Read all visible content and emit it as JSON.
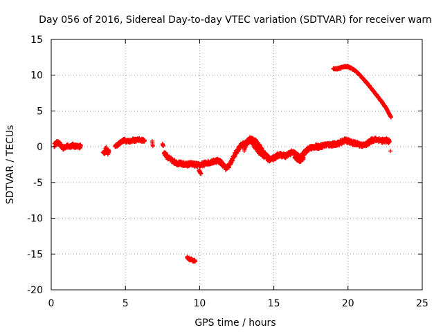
{
  "chart_data": {
    "type": "scatter",
    "title": "Day 056 of 2016, Sidereal Day-to-day VTEC variation (SDTVAR) for receiver warn",
    "xlabel": "GPS time / hours",
    "ylabel": "SDTVAR / TECUs",
    "xlim": [
      0,
      25
    ],
    "ylim": [
      -20,
      15
    ],
    "xticks": [
      0,
      5,
      10,
      15,
      20,
      25
    ],
    "yticks": [
      -20,
      -15,
      -10,
      -5,
      0,
      5,
      10,
      15
    ],
    "grid": true,
    "marker": "+",
    "color": "#ff0000",
    "series": [
      {
        "name": "SDTVAR",
        "segments": [
          {
            "points": [
              [
                0.2,
                0.2
              ],
              [
                0.4,
                0.6
              ],
              [
                0.6,
                0.3
              ],
              [
                0.8,
                -0.2
              ],
              [
                1.0,
                0.1
              ],
              [
                1.2,
                0.0
              ],
              [
                1.4,
                0.2
              ],
              [
                1.6,
                0.1
              ],
              [
                1.8,
                0.0
              ],
              [
                2.0,
                0.1
              ]
            ],
            "spread": 0.55
          },
          {
            "points": [
              [
                3.5,
                -0.5
              ],
              [
                3.6,
                -0.9
              ],
              [
                3.7,
                -0.3
              ],
              [
                3.8,
                -0.8
              ],
              [
                3.9,
                -0.6
              ]
            ],
            "spread": 0.7
          },
          {
            "points": [
              [
                4.3,
                0.0
              ],
              [
                4.5,
                0.3
              ],
              [
                4.7,
                0.7
              ],
              [
                4.9,
                0.9
              ],
              [
                5.1,
                0.8
              ],
              [
                5.3,
                0.8
              ],
              [
                5.5,
                0.9
              ],
              [
                5.7,
                0.9
              ],
              [
                5.9,
                1.0
              ],
              [
                6.1,
                0.9
              ],
              [
                6.3,
                0.9
              ]
            ],
            "spread": 0.45
          },
          {
            "points": [
              [
                6.8,
                0.7
              ],
              [
                6.85,
                0.1
              ]
            ],
            "spread": 0.2
          },
          {
            "points": [
              [
                7.5,
                0.4
              ],
              [
                7.55,
                0.1
              ]
            ],
            "spread": 0.2
          },
          {
            "points": [
              [
                7.6,
                -0.8
              ],
              [
                7.9,
                -1.6
              ],
              [
                8.2,
                -2.0
              ],
              [
                8.5,
                -2.3
              ],
              [
                8.8,
                -2.4
              ],
              [
                9.1,
                -2.5
              ],
              [
                9.4,
                -2.4
              ],
              [
                9.7,
                -2.5
              ],
              [
                10.0,
                -2.6
              ],
              [
                10.3,
                -2.4
              ],
              [
                10.6,
                -2.2
              ],
              [
                10.9,
                -2.1
              ],
              [
                11.2,
                -1.9
              ],
              [
                11.4,
                -2.1
              ],
              [
                11.6,
                -2.6
              ],
              [
                11.8,
                -3.0
              ],
              [
                12.0,
                -2.6
              ],
              [
                12.2,
                -1.8
              ],
              [
                12.4,
                -1.0
              ],
              [
                12.6,
                -0.3
              ],
              [
                12.8,
                0.2
              ],
              [
                13.0,
                0.4
              ],
              [
                13.2,
                0.6
              ],
              [
                13.4,
                0.9
              ],
              [
                13.6,
                0.5
              ],
              [
                13.8,
                -0.2
              ],
              [
                14.0,
                -0.7
              ],
              [
                14.2,
                -1.0
              ],
              [
                14.4,
                -1.4
              ],
              [
                14.6,
                -1.7
              ],
              [
                14.8,
                -1.8
              ],
              [
                15.0,
                -1.6
              ],
              [
                15.2,
                -1.3
              ],
              [
                15.4,
                -1.1
              ],
              [
                15.6,
                -1.2
              ],
              [
                15.8,
                -1.3
              ],
              [
                16.0,
                -1.0
              ],
              [
                16.2,
                -0.8
              ],
              [
                16.4,
                -0.9
              ],
              [
                16.6,
                -1.3
              ],
              [
                16.8,
                -1.5
              ],
              [
                17.0,
                -1.0
              ],
              [
                17.2,
                -0.5
              ],
              [
                17.4,
                -0.2
              ],
              [
                17.6,
                -0.1
              ],
              [
                17.8,
                0.0
              ],
              [
                18.0,
                0.0
              ],
              [
                18.2,
                0.1
              ],
              [
                18.4,
                0.2
              ],
              [
                18.6,
                0.3
              ],
              [
                18.8,
                0.3
              ],
              [
                19.0,
                0.3
              ],
              [
                19.2,
                0.4
              ],
              [
                19.4,
                0.5
              ],
              [
                19.6,
                0.7
              ],
              [
                19.8,
                0.9
              ],
              [
                20.0,
                0.8
              ],
              [
                20.2,
                0.6
              ],
              [
                20.4,
                0.5
              ],
              [
                20.6,
                0.4
              ],
              [
                20.8,
                0.3
              ],
              [
                21.0,
                0.2
              ],
              [
                21.2,
                0.3
              ],
              [
                21.4,
                0.6
              ],
              [
                21.6,
                0.9
              ],
              [
                21.8,
                1.0
              ],
              [
                22.0,
                1.0
              ],
              [
                22.2,
                0.9
              ],
              [
                22.4,
                0.8
              ],
              [
                22.6,
                0.9
              ],
              [
                22.8,
                0.7
              ]
            ],
            "spread": 0.6
          },
          {
            "points": [
              [
                13.0,
                -0.5
              ],
              [
                13.2,
                0.8
              ],
              [
                13.4,
                1.2
              ],
              [
                13.6,
                1.0
              ],
              [
                13.8,
                0.8
              ],
              [
                14.0,
                0.3
              ],
              [
                14.2,
                -0.4
              ],
              [
                14.4,
                -1.0
              ],
              [
                14.6,
                -1.3
              ]
            ],
            "spread": 0.35
          },
          {
            "points": [
              [
                16.4,
                -1.4
              ],
              [
                16.6,
                -1.9
              ],
              [
                16.8,
                -2.0
              ],
              [
                17.0,
                -1.6
              ]
            ],
            "spread": 0.3
          },
          {
            "points": [
              [
                9.15,
                -15.5
              ],
              [
                9.3,
                -15.7
              ],
              [
                9.45,
                -15.8
              ],
              [
                9.6,
                -15.9
              ],
              [
                9.7,
                -16.0
              ]
            ],
            "spread": 0.35
          },
          {
            "points": [
              [
                9.95,
                -3.3
              ],
              [
                10.1,
                -3.8
              ]
            ],
            "spread": 0.2
          },
          {
            "points": [
              [
                22.85,
                -0.6
              ]
            ],
            "spread": 0.15
          },
          {
            "points": [
              [
                19.0,
                10.9
              ],
              [
                19.3,
                10.9
              ],
              [
                19.6,
                11.1
              ],
              [
                19.8,
                11.2
              ],
              [
                20.0,
                11.2
              ],
              [
                20.2,
                11.0
              ],
              [
                20.5,
                10.6
              ],
              [
                20.8,
                10.0
              ],
              [
                21.1,
                9.3
              ],
              [
                21.4,
                8.6
              ],
              [
                21.7,
                7.8
              ],
              [
                22.0,
                7.0
              ],
              [
                22.3,
                6.2
              ],
              [
                22.6,
                5.3
              ],
              [
                22.9,
                4.1
              ]
            ],
            "spread": 0.2
          }
        ]
      }
    ]
  }
}
